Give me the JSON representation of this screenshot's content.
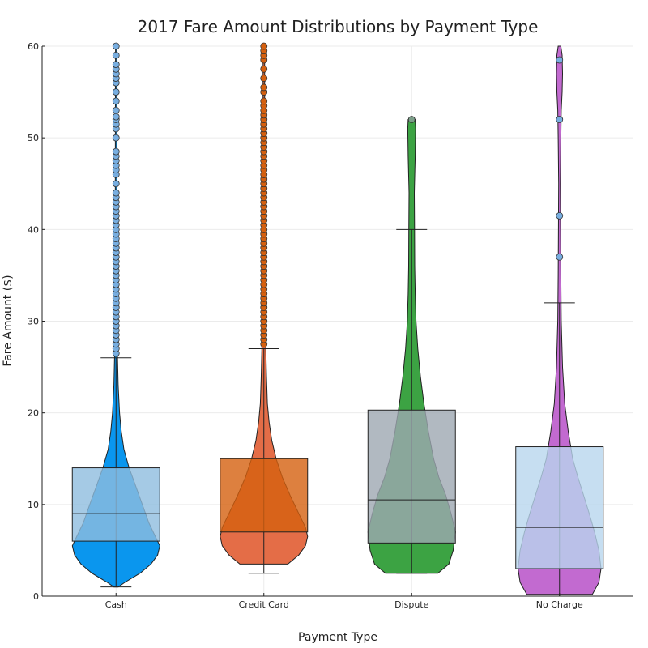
{
  "chart_data": {
    "type": "violin+box",
    "title": "2017 Fare Amount Distributions by Payment Type",
    "xlabel": "Payment Type",
    "ylabel": "Fare Amount ($)",
    "ylim": [
      0,
      60
    ],
    "yticks": [
      0,
      10,
      20,
      30,
      40,
      50,
      60
    ],
    "grid": true,
    "categories": [
      "Cash",
      "Credit Card",
      "Dispute",
      "No Charge"
    ],
    "series": [
      {
        "category": "Cash",
        "color": "#0a96ee",
        "box_color": "#8ebddf",
        "whisker_low": 1.0,
        "q1": 6.0,
        "median": 9.0,
        "q3": 14.0,
        "whisker_high": 26.0,
        "violin_min": 1.0,
        "violin_max": 60,
        "violin_profile": [
          [
            1,
            0.05
          ],
          [
            1.5,
            0.2
          ],
          [
            2.5,
            0.55
          ],
          [
            3.5,
            0.8
          ],
          [
            4.5,
            0.95
          ],
          [
            5.5,
            1.0
          ],
          [
            6.5,
            0.9
          ],
          [
            8,
            0.75
          ],
          [
            10,
            0.6
          ],
          [
            12,
            0.45
          ],
          [
            14,
            0.3
          ],
          [
            16,
            0.18
          ],
          [
            18,
            0.12
          ],
          [
            20,
            0.08
          ],
          [
            23,
            0.05
          ],
          [
            26,
            0.035
          ],
          [
            30,
            0.025
          ],
          [
            40,
            0.018
          ],
          [
            50,
            0.015
          ],
          [
            60,
            0.012
          ]
        ],
        "outliers": [
          26.5,
          27,
          27.5,
          28,
          28.5,
          29,
          29.5,
          30,
          30.5,
          31,
          31.5,
          32,
          32.5,
          33,
          33.5,
          34,
          34.5,
          35,
          35.5,
          36,
          36.5,
          37,
          37.5,
          38,
          38.5,
          39,
          39.5,
          40,
          40.5,
          41,
          41.5,
          42,
          42.5,
          43,
          43.5,
          44,
          45,
          46,
          46.5,
          47,
          47.5,
          48,
          48.5,
          50,
          51,
          51.5,
          52,
          52.3,
          53,
          54,
          55,
          56,
          56.5,
          57,
          57.5,
          58,
          59,
          60
        ]
      },
      {
        "category": "Credit Card",
        "color": "#e46d47",
        "box_color": "#d5600f",
        "whisker_low": 2.5,
        "q1": 7.0,
        "median": 9.5,
        "q3": 15.0,
        "whisker_high": 27.0,
        "violin_min": 3.5,
        "violin_max": 60,
        "violin_profile": [
          [
            3.5,
            0.55
          ],
          [
            4.5,
            0.8
          ],
          [
            5.5,
            0.95
          ],
          [
            6.5,
            1.0
          ],
          [
            7.5,
            0.95
          ],
          [
            9,
            0.8
          ],
          [
            11,
            0.6
          ],
          [
            13,
            0.42
          ],
          [
            15,
            0.28
          ],
          [
            17,
            0.18
          ],
          [
            19,
            0.12
          ],
          [
            21,
            0.08
          ],
          [
            24,
            0.06
          ],
          [
            27,
            0.045
          ],
          [
            30,
            0.035
          ],
          [
            40,
            0.025
          ],
          [
            50,
            0.02
          ],
          [
            60,
            0.018
          ]
        ],
        "outliers": [
          27.5,
          28,
          28.5,
          29,
          29.5,
          30,
          30.5,
          31,
          31.5,
          32,
          32.5,
          33,
          33.5,
          34,
          34.5,
          35,
          35.5,
          36,
          36.5,
          37,
          37.5,
          38,
          38.5,
          39,
          39.5,
          40,
          40.5,
          41,
          41.5,
          42,
          42.5,
          43,
          43.5,
          44,
          44.5,
          45,
          45.5,
          46,
          46.5,
          47,
          47.5,
          48,
          48.5,
          49,
          49.5,
          50,
          50.5,
          51,
          51.5,
          52,
          52.5,
          53,
          53.5,
          54,
          55,
          55.5,
          56.5,
          57.5,
          58.5,
          59,
          59.5,
          60
        ]
      },
      {
        "category": "Dispute",
        "color": "#3ca343",
        "box_color": "#9ea7b2",
        "whisker_low": 2.5,
        "q1": 5.8,
        "median": 10.5,
        "q3": 20.3,
        "whisker_high": 40.0,
        "violin_min": 2.5,
        "violin_max": 52,
        "violin_profile": [
          [
            2.5,
            0.6
          ],
          [
            3.5,
            0.85
          ],
          [
            5,
            0.95
          ],
          [
            7,
            1.0
          ],
          [
            9,
            0.9
          ],
          [
            11,
            0.78
          ],
          [
            13,
            0.62
          ],
          [
            15,
            0.5
          ],
          [
            18,
            0.38
          ],
          [
            21,
            0.28
          ],
          [
            24,
            0.2
          ],
          [
            27,
            0.14
          ],
          [
            30,
            0.1
          ],
          [
            33,
            0.08
          ],
          [
            36,
            0.07
          ],
          [
            40,
            0.065
          ],
          [
            44,
            0.06
          ],
          [
            48,
            0.08
          ],
          [
            51,
            0.09
          ],
          [
            52,
            0.08
          ]
        ],
        "outliers": [
          52.0
        ]
      },
      {
        "category": "No Charge",
        "color": "#c26ad0",
        "box_color": "#b8d6ee",
        "whisker_low": 0.0,
        "q1": 3.0,
        "median": 7.5,
        "q3": 16.3,
        "whisker_high": 32.0,
        "violin_min": 0.2,
        "violin_max": 60,
        "violin_profile": [
          [
            0.2,
            0.75
          ],
          [
            1.5,
            0.9
          ],
          [
            3,
            0.95
          ],
          [
            5,
            0.9
          ],
          [
            7,
            0.8
          ],
          [
            9,
            0.68
          ],
          [
            11,
            0.55
          ],
          [
            13,
            0.42
          ],
          [
            15,
            0.3
          ],
          [
            18,
            0.2
          ],
          [
            21,
            0.12
          ],
          [
            25,
            0.07
          ],
          [
            30,
            0.04
          ],
          [
            35,
            0.03
          ],
          [
            40,
            0.025
          ],
          [
            45,
            0.02
          ],
          [
            50,
            0.03
          ],
          [
            53,
            0.04
          ],
          [
            55,
            0.06
          ],
          [
            57,
            0.07
          ],
          [
            59,
            0.06
          ],
          [
            60,
            0.03
          ]
        ],
        "outliers": [
          37.0,
          41.5,
          52.0,
          58.5
        ]
      }
    ]
  }
}
